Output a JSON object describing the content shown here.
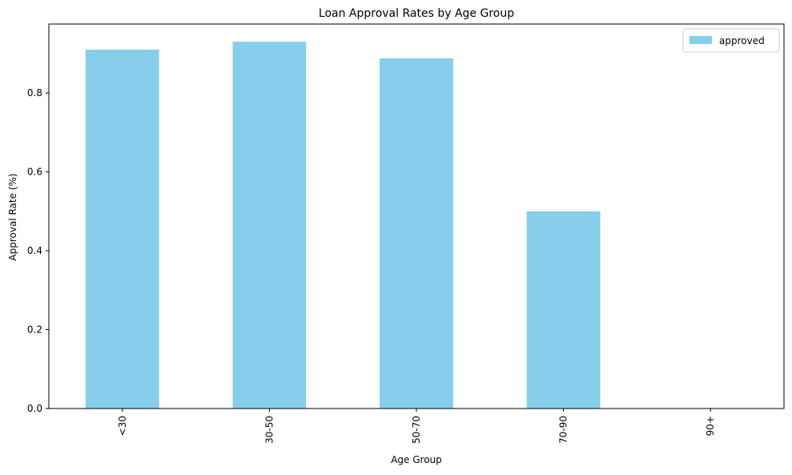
{
  "chart_data": {
    "type": "bar",
    "title": "Loan Approval Rates by Age Group",
    "xlabel": "Age Group",
    "ylabel": "Approval Rate (%)",
    "categories": [
      "<30",
      "30-50",
      "50-70",
      "70-90",
      "90+"
    ],
    "series": [
      {
        "name": "approved",
        "values": [
          0.91,
          0.93,
          0.888,
          0.5,
          0.0
        ],
        "color": "#87ceeb"
      }
    ],
    "ylim": [
      0,
      0.975
    ],
    "yticks": [
      "0.0",
      "0.2",
      "0.4",
      "0.6",
      "0.8"
    ],
    "ytick_values": [
      0,
      0.2,
      0.4,
      0.6,
      0.8
    ],
    "xtick_rotation": "vertical",
    "grid": false,
    "legend_position": "top-right"
  }
}
